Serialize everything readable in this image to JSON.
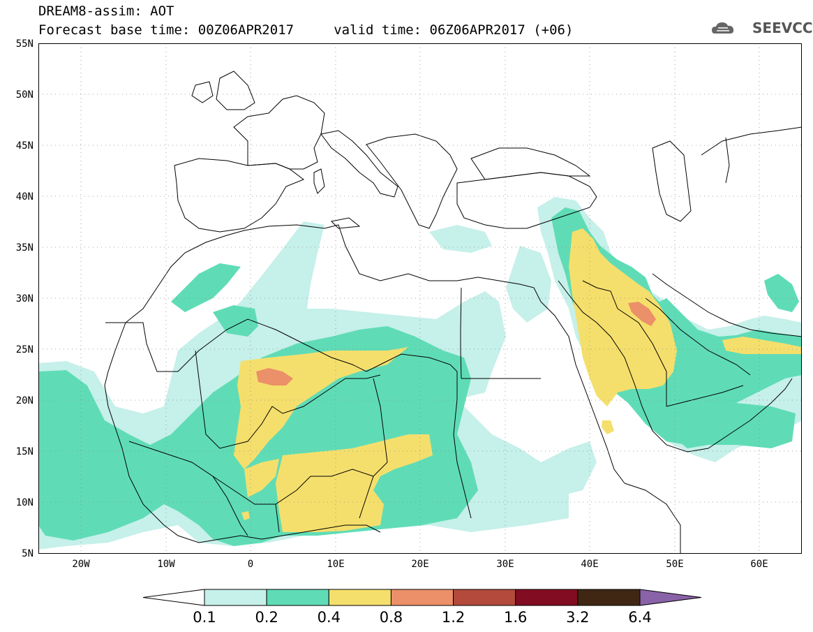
{
  "header": {
    "line1": "DREAM8-assim: AOT",
    "line2": "Forecast base time: 00Z06APR2017     valid time: 06Z06APR2017 (+06)"
  },
  "logo": {
    "text": "SEEVCCC",
    "icon": "cloud-icon"
  },
  "map": {
    "lat_range": [
      5,
      55
    ],
    "lon_range": [
      -25,
      65
    ],
    "lat_labels": [
      "55N",
      "50N",
      "45N",
      "40N",
      "35N",
      "30N",
      "25N",
      "20N",
      "15N",
      "10N",
      "5N"
    ],
    "lon_labels": [
      "20W",
      "10W",
      "0",
      "10E",
      "20E",
      "30E",
      "40E",
      "50E",
      "60E"
    ],
    "field": "AOT"
  },
  "legend": {
    "labels": [
      "0.1",
      "0.2",
      "0.4",
      "0.8",
      "1.2",
      "1.6",
      "3.2",
      "6.4"
    ],
    "colors": [
      "#ffffff",
      "#c6f0ea",
      "#5fdcb6",
      "#f5df6c",
      "#eb9068",
      "#b34a3c",
      "#820c21",
      "#3f2714",
      "#8a62a8"
    ]
  }
}
